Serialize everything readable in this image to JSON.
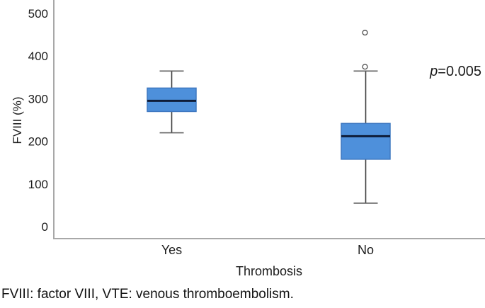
{
  "chart_data": {
    "type": "boxplot",
    "title": "",
    "xlabel": "Thrombosis",
    "ylabel": "FVIII (%)",
    "ylim": [
      0,
      500
    ],
    "yticks": [
      "0",
      "100",
      "200",
      "300",
      "400",
      "500"
    ],
    "categories": [
      "Yes",
      "No"
    ],
    "series": [
      {
        "category": "Yes",
        "whisker_low": 220,
        "q1": 270,
        "median": 295,
        "q3": 325,
        "whisker_high": 365,
        "outliers": []
      },
      {
        "category": "No",
        "whisker_low": 55,
        "q1": 158,
        "median": 212,
        "q3": 242,
        "whisker_high": 365,
        "outliers": [
          375,
          455
        ]
      }
    ],
    "grid": false,
    "legend_position": "none",
    "annotation": "p=0.005"
  },
  "annotation": {
    "p_symbol": "p",
    "p_rest": "=0.005"
  },
  "footnote": "FVIII: factor VIII, VTE: venous thromboembolism.",
  "colors": {
    "box_fill": "#4e90db",
    "box_border": "#3f78c1",
    "median_line": "#0e1c38",
    "whisker_line": "#3f3f3f",
    "whisker_cap": "#606060",
    "axis_line": "#a8a8a8",
    "outlier_stroke": "#4a4a4a",
    "text": "#1c1c1c"
  }
}
